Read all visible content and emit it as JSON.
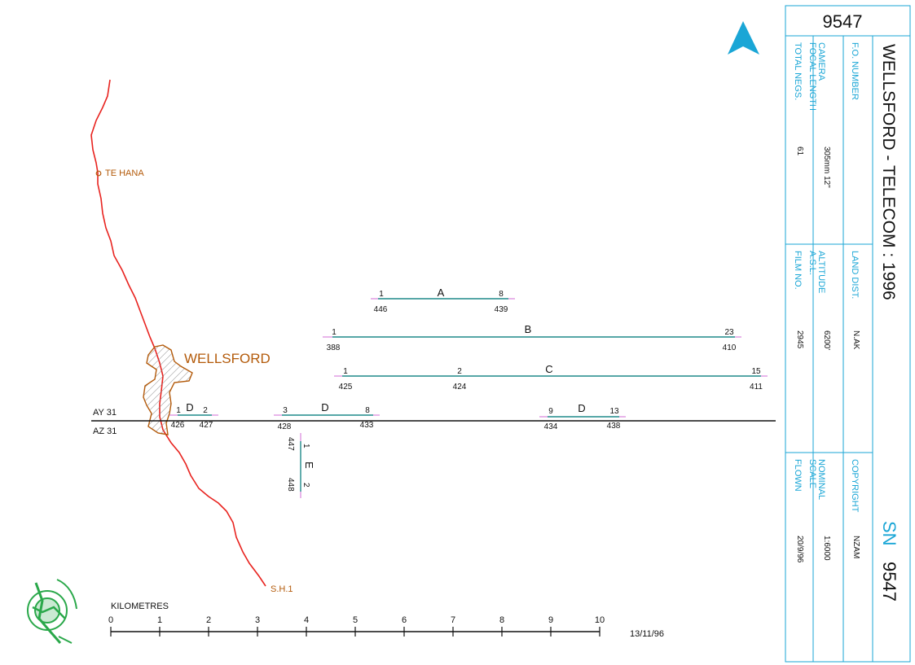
{
  "map": {
    "title": "WELLSFORD - TELECOM : 1996",
    "sheet_number": "9547",
    "sn_label": "SN",
    "sn_number": "9547",
    "north_label": "N",
    "info": {
      "fo_number_label": "F.O. NUMBER",
      "fo_number_value": "",
      "land_dist_label": "LAND DIST.",
      "land_dist_value": "N.AK",
      "copyright_label": "COPYRIGHT",
      "copyright_value": "NZAM",
      "camera_label_1": "CAMERA",
      "camera_label_2": "FOCAL LENGTH",
      "camera_value": "305mm 12\"",
      "altitude_label_1": "ALTITUDE",
      "altitude_label_2": "A.S.L.",
      "altitude_value": "6200'",
      "nominal_label_1": "NOMINAL",
      "nominal_label_2": "SCALE",
      "nominal_value": "1:6000",
      "total_negs_label": "TOTAL NEGS.",
      "total_negs_value": "61",
      "film_no_label": "FILM NO.",
      "film_no_value": "2945",
      "flown_label": "FLOWN",
      "flown_value": "20/9/96"
    },
    "places": {
      "te_hana": "TE HANA",
      "wellsford": "WELLSFORD",
      "sh1": "S.H.1"
    },
    "grid_lines": {
      "ay": "AY 31",
      "az": "AZ 31"
    },
    "runs": [
      {
        "name": "A",
        "start_label": "1",
        "end_label": "8",
        "start_frame": "446",
        "end_frame": "439"
      },
      {
        "name": "B",
        "start_label": "1",
        "end_label": "23",
        "start_frame": "388",
        "end_frame": "410"
      },
      {
        "name": "C",
        "start_label": "1",
        "mid_label": "2",
        "end_label": "15",
        "start_frame": "425",
        "mid_frame": "424",
        "end_frame": "411"
      },
      {
        "name": "D",
        "start_label": "1",
        "end_label": "2",
        "start_frame": "426",
        "end_frame": "427"
      },
      {
        "name": "D",
        "start_label": "3",
        "end_label": "8",
        "start_frame": "428",
        "end_frame": "433"
      },
      {
        "name": "D",
        "start_label": "9",
        "end_label": "13",
        "start_frame": "434",
        "end_frame": "438"
      },
      {
        "name": "E",
        "start_label": "1",
        "end_label": "2",
        "start_frame": "447",
        "end_frame": "448"
      }
    ],
    "scale_bar": {
      "label": "KILOMETRES",
      "ticks": [
        "0",
        "1",
        "2",
        "3",
        "4",
        "5",
        "6",
        "7",
        "8",
        "9",
        "10"
      ]
    },
    "date": "13/11/96",
    "colors": {
      "road": "#e8231f",
      "place_label": "#b35a0a",
      "run_line": "#1f8a8a",
      "run_end": "#d26bd6",
      "frame_border": "#1aa6d6"
    }
  }
}
